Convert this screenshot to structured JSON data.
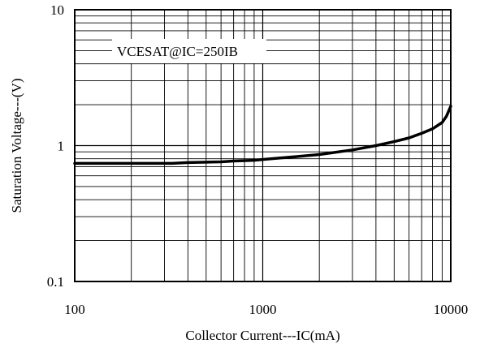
{
  "chart_data": {
    "type": "line",
    "xlabel": "Collector Current---IC(mA)",
    "ylabel": "Saturation Voltage---(V)",
    "x_scale": "log",
    "y_scale": "log",
    "xlim": [
      100,
      10000
    ],
    "ylim": [
      0.1,
      10
    ],
    "grid": true,
    "x_ticks": [
      {
        "value": 100,
        "label": "100"
      },
      {
        "value": 1000,
        "label": "1000"
      },
      {
        "value": 10000,
        "label": "10000"
      }
    ],
    "y_ticks": [
      {
        "value": 10,
        "label": "10"
      },
      {
        "value": 1,
        "label": "1"
      },
      {
        "value": 0.1,
        "label": "0.1"
      }
    ],
    "annotations": [
      {
        "text": "VCESAT@IC=250IB"
      }
    ],
    "series": [
      {
        "x": [
          100,
          200,
          330,
          400,
          600,
          700,
          900,
          1000,
          1100,
          1500,
          2000,
          3000,
          4000,
          5000,
          6000,
          7000,
          8000,
          9000,
          9500,
          10000
        ],
        "y": [
          0.74,
          0.74,
          0.74,
          0.75,
          0.76,
          0.77,
          0.78,
          0.79,
          0.8,
          0.83,
          0.86,
          0.93,
          1.0,
          1.07,
          1.14,
          1.23,
          1.33,
          1.48,
          1.65,
          1.95
        ]
      }
    ]
  }
}
